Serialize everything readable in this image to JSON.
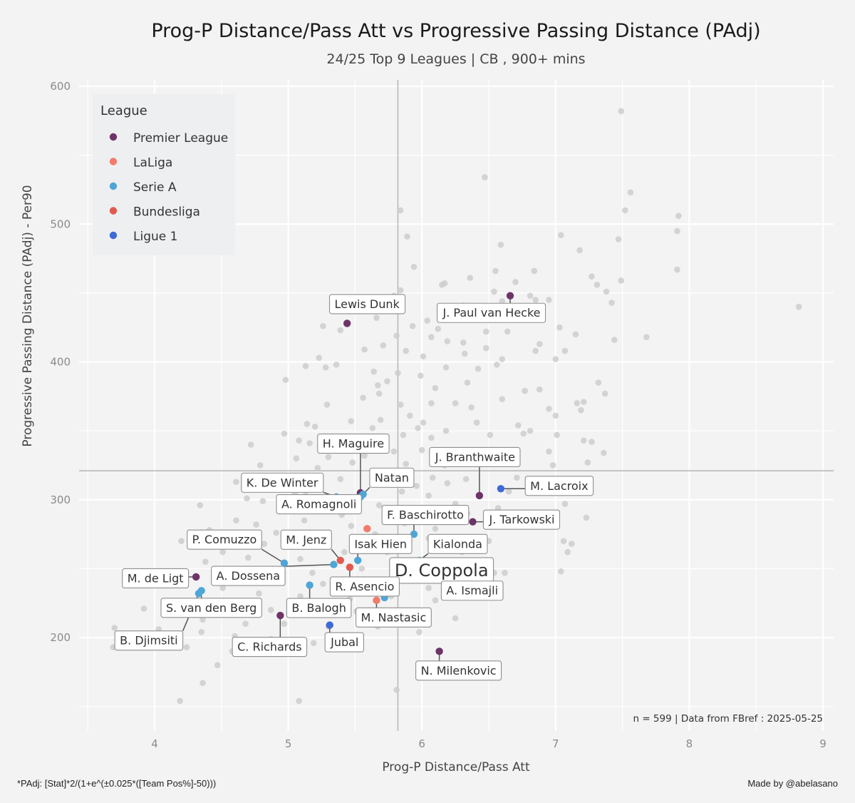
{
  "header": {
    "title": "Prog-P Distance/Pass Att  vs  Progressive Passing Distance (PAdj)",
    "subtitle": "24/25 Top 9 Leagues | CB , 900+ mins"
  },
  "footer": {
    "formula": "*PAdj: [Stat]*2/(1+e^(±0.025*([Team Pos%]-50)))",
    "credit": "Made by @abelasano"
  },
  "note": "n =  599  | Data from  FBref : 2025-05-25",
  "colors": {
    "Premier League": "#6e3468",
    "LaLiga": "#f27b6b",
    "Serie A": "#4ea6d6",
    "Bundesliga": "#e05a4e",
    "Ligue 1": "#3e6ad6",
    "background": "#f3f3f4",
    "other": "#cccccc"
  },
  "chart_data": {
    "type": "scatter",
    "title": "Prog-P Distance/Pass Att  vs  Progressive Passing Distance (PAdj)",
    "subtitle": "24/25 Top 9 Leagues | CB , 900+ mins",
    "xlabel": "Prog-P Distance/Pass Att",
    "ylabel": "Progressive Passing Distance (PAdj)  -  Per90",
    "xlim": [
      3.5,
      9.1
    ],
    "ylim": [
      135,
      605
    ],
    "xticks": [
      4,
      5,
      6,
      7,
      8,
      9
    ],
    "yticks": [
      200,
      300,
      400,
      500,
      600
    ],
    "reference_lines": {
      "x": 5.82,
      "y": 321
    },
    "grid": true,
    "legend": {
      "title": "League",
      "position": "top-left",
      "entries": [
        "Premier League",
        "LaLiga",
        "Serie A",
        "Bundesliga",
        "Ligue 1"
      ]
    },
    "highlighted": [
      {
        "name": "Lewis Dunk",
        "league": "Premier League",
        "x": 5.44,
        "y": 428
      },
      {
        "name": "J. Paul van Hecke",
        "league": "Premier League",
        "x": 6.66,
        "y": 448
      },
      {
        "name": "H. Maguire",
        "league": "Premier League",
        "x": 5.54,
        "y": 305
      },
      {
        "name": "J. Branthwaite",
        "league": "Premier League",
        "x": 6.43,
        "y": 303
      },
      {
        "name": "M. Lacroix",
        "league": "Ligue 1",
        "x": 6.59,
        "y": 308
      },
      {
        "name": "K. De Winter",
        "league": "Serie A",
        "x": 5.36,
        "y": 302
      },
      {
        "name": "Natan",
        "league": "Serie A",
        "x": 5.54,
        "y": 302
      },
      {
        "name": "A. Romagnoli",
        "league": "Serie A",
        "x": 5.56,
        "y": 304
      },
      {
        "name": "F. Baschirotto",
        "league": "Serie A",
        "x": 5.94,
        "y": 275
      },
      {
        "name": "J. Tarkowski",
        "league": "Premier League",
        "x": 6.38,
        "y": 284
      },
      {
        "name": "P. Comuzzo",
        "league": "Serie A",
        "x": 4.97,
        "y": 254
      },
      {
        "name": "M. Jenz",
        "league": "Bundesliga",
        "x": 5.39,
        "y": 256
      },
      {
        "name": "Isak Hien",
        "league": "Serie A",
        "x": 5.52,
        "y": 256
      },
      {
        "name": "Kialonda",
        "league": "Serie A",
        "x": 5.98,
        "y": 256
      },
      {
        "name": "M. de Ligt",
        "league": "Premier League",
        "x": 4.31,
        "y": 244
      },
      {
        "name": "A. Dossena",
        "league": "Serie A",
        "x": 5.34,
        "y": 253
      },
      {
        "name": "D. Coppola",
        "league": "Serie A",
        "x": 5.72,
        "y": 229
      },
      {
        "name": "R. Asencio",
        "league": "Bundesliga",
        "x": 5.46,
        "y": 251
      },
      {
        "name": "A. Ismajli",
        "league": "Serie A",
        "x": 6.12,
        "y": 248
      },
      {
        "name": "S. van den Berg",
        "league": "Serie A",
        "x": 4.35,
        "y": 234
      },
      {
        "name": "B. Balogh",
        "league": "Serie A",
        "x": 5.16,
        "y": 238
      },
      {
        "name": "M. Nastasic",
        "league": "LaLiga",
        "x": 5.66,
        "y": 227
      },
      {
        "name": "B. Djimsiti",
        "league": "Serie A",
        "x": 4.33,
        "y": 232
      },
      {
        "name": "C. Richards",
        "league": "Premier League",
        "x": 4.94,
        "y": 216
      },
      {
        "name": "Jubal",
        "league": "Ligue 1",
        "x": 5.31,
        "y": 209
      },
      {
        "name": "N. Milenkovic",
        "league": "Premier League",
        "x": 6.13,
        "y": 190
      },
      {
        "name": "Natan",
        "league": "LaLiga",
        "x": 5.59,
        "y": 279
      }
    ],
    "others": [
      [
        7.49,
        582
      ],
      [
        6.47,
        534
      ],
      [
        7.56,
        523
      ],
      [
        5.84,
        510
      ],
      [
        7.52,
        510
      ],
      [
        7.92,
        506
      ],
      [
        5.89,
        491
      ],
      [
        7.91,
        495
      ],
      [
        7.04,
        492
      ],
      [
        7.47,
        489
      ],
      [
        6.59,
        485
      ],
      [
        7.18,
        481
      ],
      [
        7.91,
        467
      ],
      [
        5.94,
        469
      ],
      [
        7.27,
        462
      ],
      [
        6.84,
        466
      ],
      [
        6.55,
        466
      ],
      [
        6.36,
        461
      ],
      [
        6.7,
        458
      ],
      [
        7.49,
        459
      ],
      [
        7.31,
        456
      ],
      [
        6.17,
        457
      ],
      [
        6.15,
        456
      ],
      [
        5.84,
        452
      ],
      [
        6.54,
        451
      ],
      [
        7.38,
        451
      ],
      [
        5.79,
        448
      ],
      [
        6.81,
        448
      ],
      [
        6.85,
        445
      ],
      [
        6.95,
        445
      ],
      [
        6.6,
        444
      ],
      [
        7.42,
        443
      ],
      [
        6.31,
        441
      ],
      [
        5.74,
        439
      ],
      [
        6.89,
        440
      ],
      [
        6.73,
        434
      ],
      [
        5.66,
        432
      ],
      [
        6.04,
        430
      ],
      [
        5.93,
        426
      ],
      [
        6.12,
        424
      ],
      [
        5.26,
        426
      ],
      [
        5.39,
        423
      ],
      [
        7.03,
        425
      ],
      [
        6.48,
        422
      ],
      [
        6.64,
        422
      ],
      [
        7.15,
        420
      ],
      [
        5.81,
        419
      ],
      [
        7.44,
        416
      ],
      [
        7.68,
        418
      ],
      [
        6.07,
        418
      ],
      [
        6.19,
        415
      ],
      [
        6.31,
        414
      ],
      [
        5.71,
        412
      ],
      [
        6.88,
        413
      ],
      [
        6.48,
        410
      ],
      [
        5.57,
        409
      ],
      [
        7.07,
        408
      ],
      [
        5.88,
        408
      ],
      [
        6.01,
        404
      ],
      [
        6.32,
        406
      ],
      [
        6.85,
        408
      ],
      [
        6.56,
        398
      ],
      [
        6.6,
        402
      ],
      [
        7.0,
        402
      ],
      [
        6.42,
        395
      ],
      [
        5.99,
        390
      ],
      [
        5.64,
        393
      ],
      [
        5.82,
        392
      ],
      [
        6.18,
        396
      ],
      [
        5.36,
        398
      ],
      [
        5.23,
        403
      ],
      [
        5.13,
        397
      ],
      [
        5.28,
        396
      ],
      [
        7.32,
        385
      ],
      [
        7.37,
        377
      ],
      [
        5.74,
        386
      ],
      [
        5.67,
        383
      ],
      [
        4.98,
        387
      ],
      [
        6.1,
        381
      ],
      [
        6.34,
        385
      ],
      [
        6.88,
        380
      ],
      [
        6.6,
        373
      ],
      [
        6.77,
        379
      ],
      [
        7.16,
        370
      ],
      [
        7.21,
        371
      ],
      [
        5.68,
        377
      ],
      [
        5.56,
        374
      ],
      [
        6.37,
        367
      ],
      [
        6.25,
        370
      ],
      [
        5.29,
        369
      ],
      [
        6.07,
        370
      ],
      [
        5.84,
        369
      ],
      [
        7.0,
        361
      ],
      [
        6.95,
        366
      ],
      [
        7.19,
        365
      ],
      [
        6.72,
        354
      ],
      [
        5.69,
        358
      ],
      [
        5.91,
        361
      ],
      [
        6.41,
        356
      ],
      [
        6.01,
        356
      ],
      [
        5.47,
        357
      ],
      [
        5.14,
        355
      ],
      [
        5.2,
        353
      ],
      [
        5.63,
        352
      ],
      [
        6.76,
        348
      ],
      [
        6.81,
        350
      ],
      [
        7.01,
        347
      ],
      [
        5.97,
        352
      ],
      [
        6.18,
        350
      ],
      [
        4.97,
        348
      ],
      [
        5.27,
        346
      ],
      [
        5.86,
        347
      ],
      [
        6.07,
        345
      ],
      [
        6.51,
        347
      ],
      [
        5.08,
        343
      ],
      [
        5.16,
        341
      ],
      [
        5.41,
        340
      ],
      [
        5.67,
        339
      ],
      [
        4.72,
        340
      ],
      [
        7.21,
        343
      ],
      [
        7.27,
        342
      ],
      [
        6.95,
        335
      ],
      [
        6.69,
        334
      ],
      [
        7.36,
        334
      ],
      [
        6.28,
        334
      ],
      [
        6.0,
        336
      ],
      [
        5.79,
        335
      ],
      [
        5.57,
        332
      ],
      [
        5.3,
        331
      ],
      [
        5.06,
        330
      ],
      [
        4.79,
        325
      ],
      [
        5.22,
        323
      ],
      [
        5.48,
        327
      ],
      [
        5.88,
        326
      ],
      [
        6.17,
        325
      ],
      [
        6.52,
        326
      ],
      [
        6.98,
        325
      ],
      [
        7.24,
        327
      ],
      [
        5.1,
        317
      ],
      [
        5.39,
        315
      ],
      [
        5.73,
        319
      ],
      [
        6.08,
        316
      ],
      [
        6.33,
        315
      ],
      [
        6.71,
        316
      ],
      [
        4.61,
        313
      ],
      [
        4.95,
        311
      ],
      [
        5.96,
        310
      ],
      [
        6.19,
        312
      ],
      [
        6.65,
        306
      ],
      [
        5.05,
        305
      ],
      [
        5.13,
        306
      ],
      [
        5.85,
        306
      ],
      [
        6.05,
        303
      ],
      [
        4.69,
        301
      ],
      [
        4.81,
        299
      ],
      [
        5.24,
        298
      ],
      [
        5.68,
        296
      ],
      [
        6.25,
        297
      ],
      [
        6.57,
        294
      ],
      [
        7.07,
        297
      ],
      [
        4.34,
        296
      ],
      [
        5.0,
        292
      ],
      [
        5.4,
        289
      ],
      [
        5.74,
        288
      ],
      [
        5.99,
        289
      ],
      [
        6.34,
        290
      ],
      [
        6.93,
        287
      ],
      [
        7.23,
        287
      ],
      [
        4.61,
        285
      ],
      [
        4.76,
        282
      ],
      [
        5.12,
        285
      ],
      [
        5.47,
        281
      ],
      [
        5.87,
        283
      ],
      [
        6.1,
        279
      ],
      [
        4.41,
        278
      ],
      [
        4.91,
        276
      ],
      [
        5.28,
        274
      ],
      [
        5.65,
        275
      ],
      [
        6.05,
        272
      ],
      [
        6.5,
        270
      ],
      [
        7.06,
        270
      ],
      [
        7.12,
        268
      ],
      [
        4.2,
        270
      ],
      [
        4.82,
        268
      ],
      [
        5.21,
        266
      ],
      [
        5.42,
        262
      ],
      [
        5.74,
        262
      ],
      [
        6.3,
        262
      ],
      [
        7.09,
        262
      ],
      [
        4.51,
        262
      ],
      [
        4.7,
        258
      ],
      [
        5.09,
        257
      ],
      [
        5.55,
        250
      ],
      [
        5.96,
        249
      ],
      [
        6.54,
        247
      ],
      [
        6.62,
        247
      ],
      [
        7.04,
        248
      ],
      [
        4.38,
        255
      ],
      [
        4.88,
        250
      ],
      [
        5.18,
        247
      ],
      [
        5.84,
        245
      ],
      [
        6.45,
        247
      ],
      [
        4.62,
        245
      ],
      [
        4.88,
        241
      ],
      [
        5.26,
        239
      ],
      [
        5.63,
        238
      ],
      [
        6.05,
        236
      ],
      [
        4.51,
        236
      ],
      [
        4.78,
        232
      ],
      [
        5.09,
        230
      ],
      [
        5.46,
        228
      ],
      [
        5.77,
        230
      ],
      [
        6.1,
        227
      ],
      [
        3.92,
        221
      ],
      [
        4.57,
        223
      ],
      [
        4.87,
        220
      ],
      [
        5.18,
        220
      ],
      [
        5.51,
        219
      ],
      [
        5.95,
        216
      ],
      [
        6.25,
        214
      ],
      [
        4.36,
        213
      ],
      [
        4.68,
        210
      ],
      [
        4.97,
        210
      ],
      [
        5.3,
        208
      ],
      [
        5.67,
        208
      ],
      [
        5.87,
        210
      ],
      [
        4.03,
        206
      ],
      [
        3.7,
        207
      ],
      [
        4.35,
        204
      ],
      [
        4.6,
        201
      ],
      [
        4.87,
        199
      ],
      [
        5.19,
        196
      ],
      [
        5.5,
        197
      ],
      [
        5.98,
        204
      ],
      [
        3.69,
        193
      ],
      [
        4.24,
        193
      ],
      [
        4.58,
        190
      ],
      [
        5.08,
        190
      ],
      [
        5.48,
        192
      ],
      [
        4.47,
        180
      ],
      [
        4.36,
        167
      ],
      [
        5.81,
        162
      ],
      [
        4.19,
        154
      ],
      [
        5.08,
        154
      ],
      [
        8.82,
        440
      ]
    ]
  }
}
